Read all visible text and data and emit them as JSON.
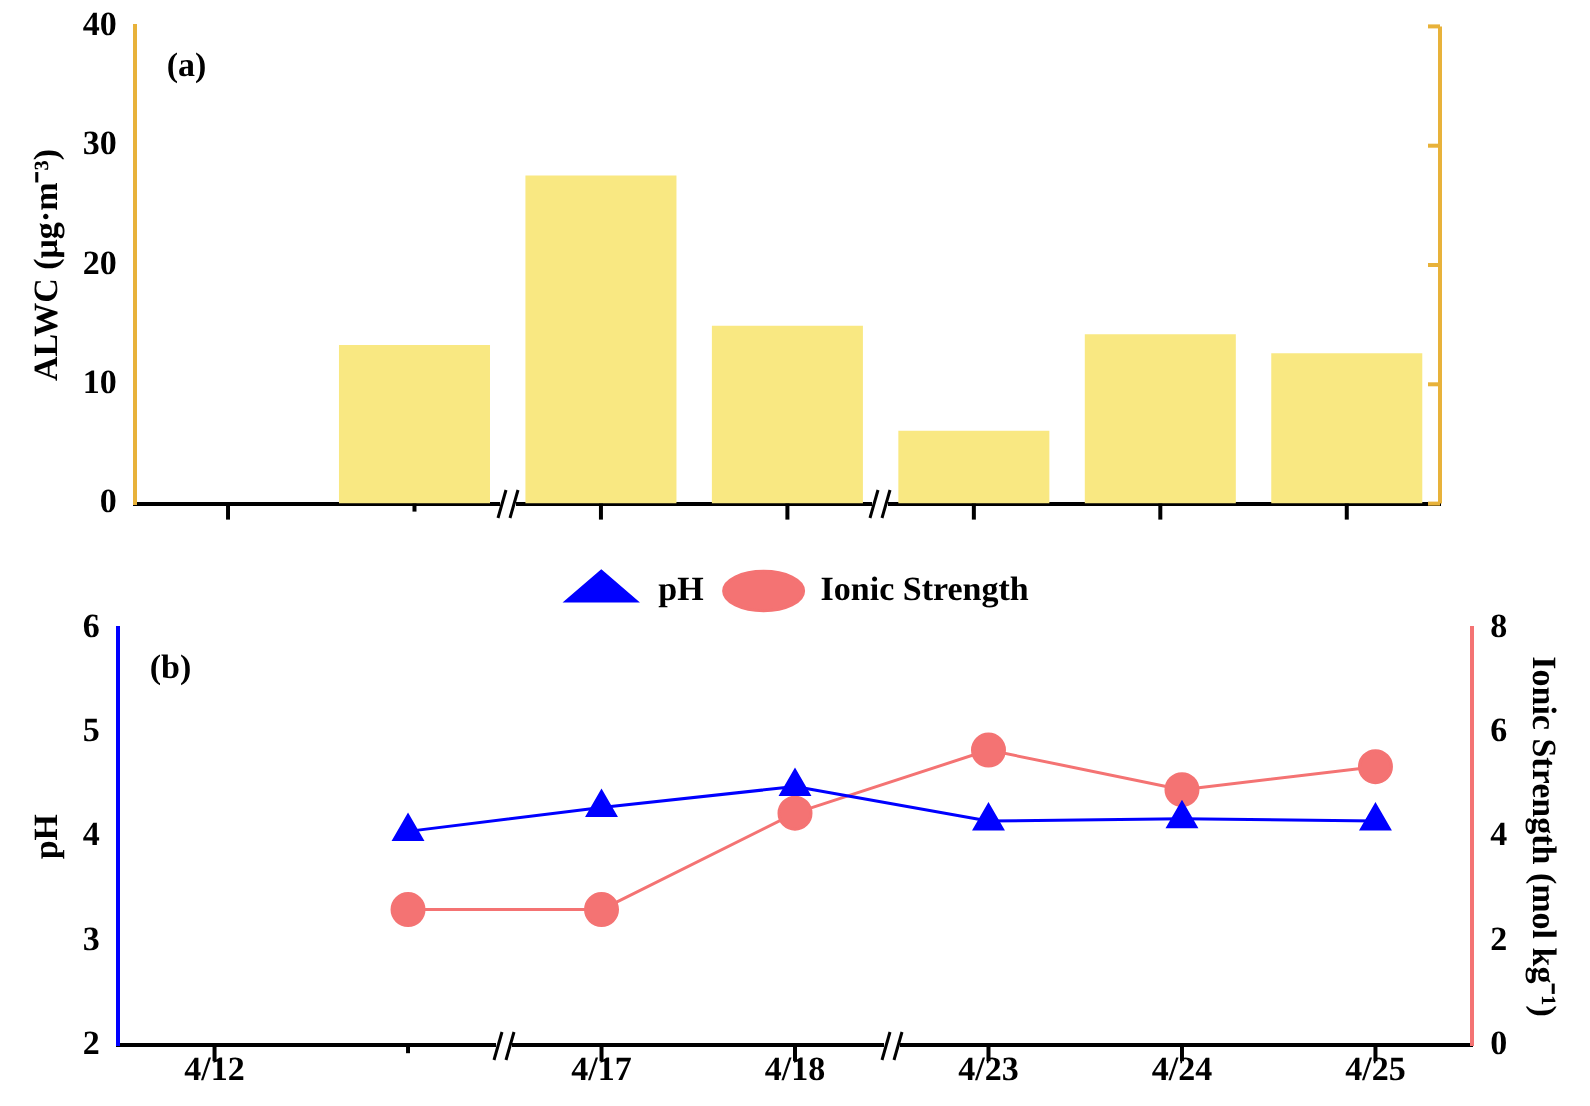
{
  "chart_data": [
    {
      "type": "bar",
      "title": "(a)",
      "values": [
        null,
        13.3,
        27.5,
        14.9,
        6.1,
        14.2,
        12.6
      ],
      "color": "#f9e882",
      "ylabel": "ALWC (μg·m⁻³)",
      "ylim": [
        0,
        40
      ],
      "yticks": [
        0,
        10,
        20,
        30,
        40
      ],
      "tick_labels": "y",
      "grid": false
    },
    {
      "type": "line",
      "title": "(b)",
      "categories": [
        "4/12",
        null,
        "4/17",
        "4/18",
        "4/23",
        "4/24",
        "4/25"
      ],
      "series": [
        {
          "name": "pH",
          "color": "#0000ff",
          "marker": "triangle",
          "values": [
            null,
            4.05,
            4.28,
            4.48,
            4.15,
            4.17,
            4.15
          ]
        },
        {
          "name": "Ionic Strength",
          "color": "#f47373",
          "marker": "circle",
          "axis": "y2",
          "values": [
            null,
            2.6,
            2.6,
            4.45,
            5.66,
            4.9,
            5.34
          ]
        }
      ],
      "ylabel": "pH",
      "y2label": "Ionic Strength (mol kg⁻¹)",
      "ylim": [
        2,
        6
      ],
      "yticks": [
        2,
        3,
        4,
        5,
        6
      ],
      "y2lim": [
        0,
        8
      ],
      "y2ticks": [
        0,
        2,
        4,
        6,
        8
      ],
      "legend": "top",
      "grid": false
    }
  ]
}
